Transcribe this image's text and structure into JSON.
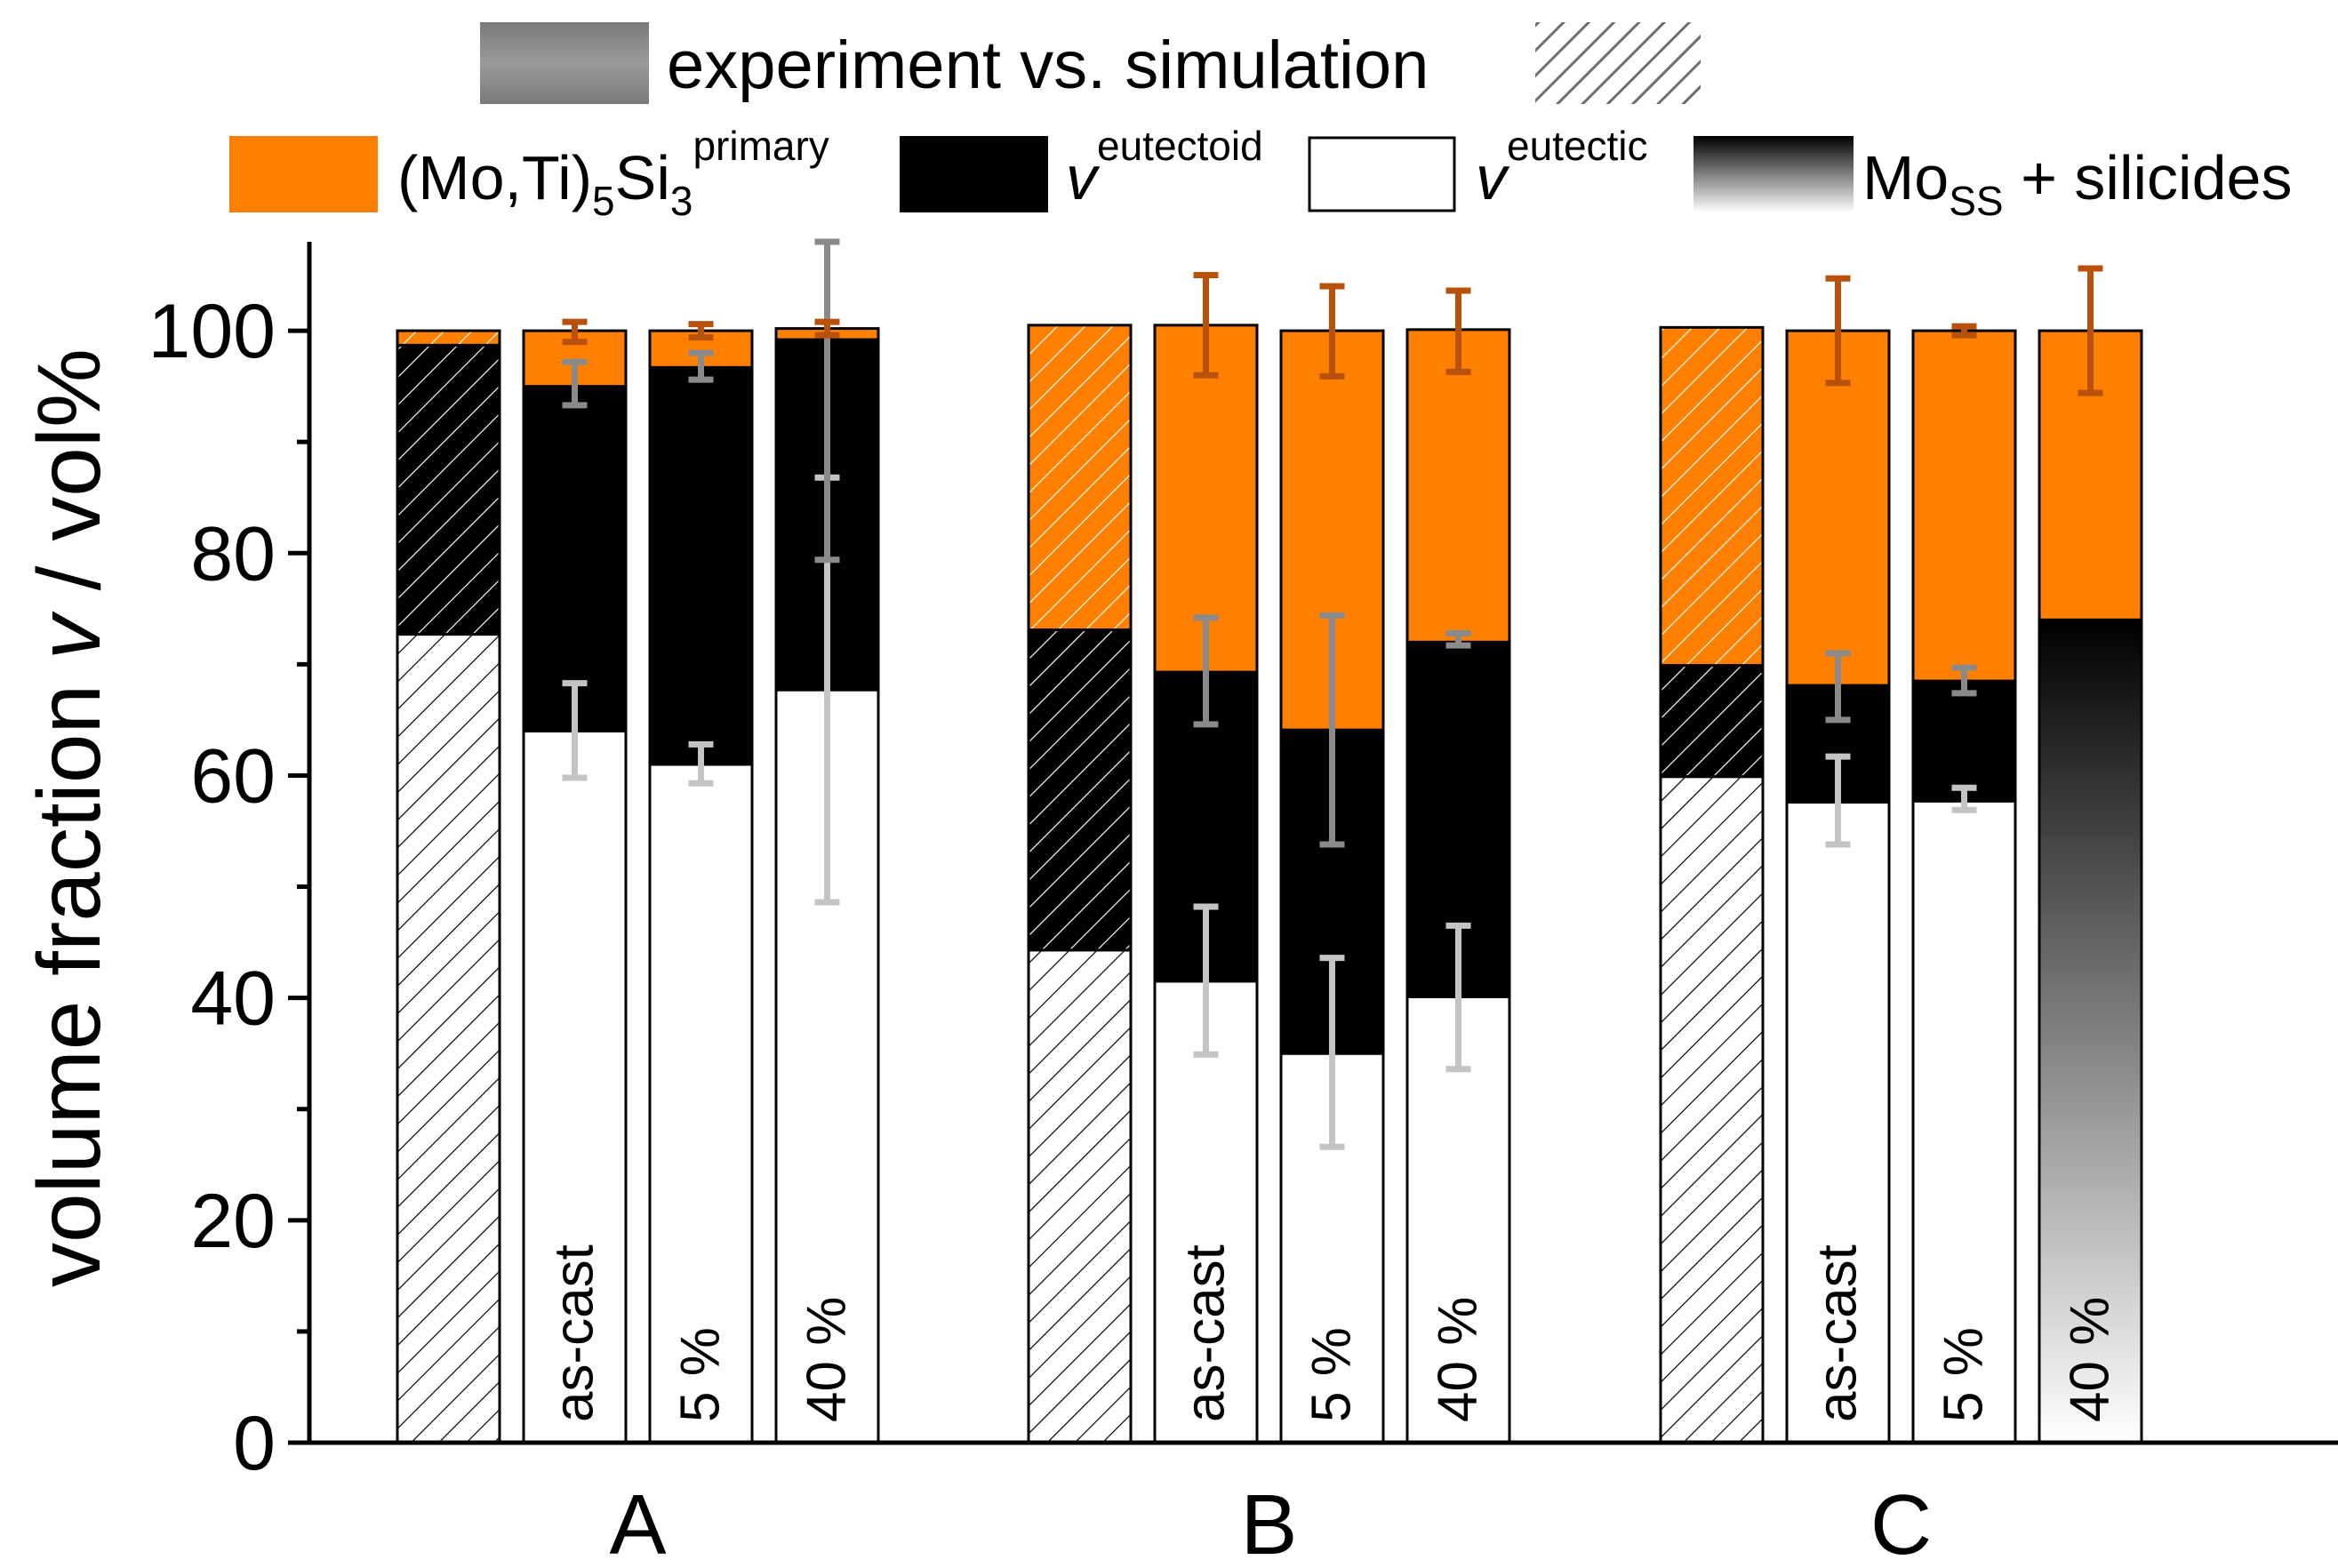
{
  "chart_data": {
    "type": "bar",
    "stacked": true,
    "header": {
      "experiment_label": "experiment vs. simulation"
    },
    "legend": {
      "primary": {
        "main": "(Mo,Ti)",
        "sub1": "5",
        "mid": "Si",
        "sub2": "3",
        "sup": "primary"
      },
      "eutectoid": {
        "main": "v",
        "sup": "eutectoid"
      },
      "eutectic": {
        "main": "v",
        "sup": "eutectic"
      },
      "moss": {
        "main": "Mo",
        "sub": "SS",
        "rest": " + silicides"
      }
    },
    "ylabel": {
      "main": "volume fraction ",
      "var": "v",
      "rest": " / vol%"
    },
    "ylim": [
      0,
      108
    ],
    "yticks": [
      0,
      20,
      40,
      60,
      80,
      100
    ],
    "colors": {
      "primary": "#FF8000",
      "eutectoid": "#000000",
      "eutectic": "#FFFFFF",
      "error_primary": "#B8510C",
      "error_eutectoid": "#8A8A8A",
      "error_eutectic": "#C4C4C4",
      "hatch": "#000000",
      "legend_grey": "#888888"
    },
    "groups": [
      {
        "name": "A",
        "bars": [
          {
            "label": "",
            "simulation": true,
            "segments": [
              {
                "phase": "eutectic",
                "start": 0,
                "end": 72.7
              },
              {
                "phase": "eutectoid",
                "start": 72.7,
                "end": 98.7
              },
              {
                "phase": "primary",
                "start": 98.7,
                "end": 100
              }
            ]
          },
          {
            "label": "as-cast",
            "simulation": false,
            "segments": [
              {
                "phase": "eutectic",
                "start": 0,
                "end": 64
              },
              {
                "phase": "eutectoid",
                "start": 64,
                "end": 95
              },
              {
                "phase": "primary",
                "start": 95,
                "end": 100
              }
            ],
            "errors": [
              {
                "phase": "eutectic",
                "value": 64,
                "lo": 59.8,
                "hi": 68.3
              },
              {
                "phase": "eutectoid",
                "value": 95,
                "lo": 93.3,
                "hi": 97.2
              },
              {
                "phase": "primary",
                "value": 100,
                "lo": 99,
                "hi": 100.8
              }
            ]
          },
          {
            "label": "5 %",
            "simulation": false,
            "segments": [
              {
                "phase": "eutectic",
                "start": 0,
                "end": 61
              },
              {
                "phase": "eutectoid",
                "start": 61,
                "end": 96.7
              },
              {
                "phase": "primary",
                "start": 96.7,
                "end": 100
              }
            ],
            "errors": [
              {
                "phase": "eutectic",
                "value": 61,
                "lo": 59.3,
                "hi": 62.8
              },
              {
                "phase": "eutectoid",
                "value": 96.7,
                "lo": 95.6,
                "hi": 98
              },
              {
                "phase": "primary",
                "value": 100,
                "lo": 99.4,
                "hi": 100.6
              }
            ]
          },
          {
            "label": "40 %",
            "simulation": false,
            "segments": [
              {
                "phase": "eutectic",
                "start": 0,
                "end": 67.7
              },
              {
                "phase": "eutectoid",
                "start": 67.7,
                "end": 99.2
              },
              {
                "phase": "primary",
                "start": 99.2,
                "end": 100.2
              }
            ],
            "errors": [
              {
                "phase": "eutectic",
                "value": 67.7,
                "lo": 48.6,
                "hi": 86.8
              },
              {
                "phase": "eutectoid",
                "value": 99.2,
                "lo": 79.4,
                "hi": 108
              },
              {
                "phase": "primary",
                "value": 100.2,
                "lo": 99.6,
                "hi": 100.8
              }
            ]
          }
        ]
      },
      {
        "name": "B",
        "bars": [
          {
            "label": "",
            "simulation": true,
            "segments": [
              {
                "phase": "eutectic",
                "start": 0,
                "end": 44.3
              },
              {
                "phase": "eutectoid",
                "start": 44.3,
                "end": 73.1
              },
              {
                "phase": "primary",
                "start": 73.1,
                "end": 100.5
              }
            ]
          },
          {
            "label": "as-cast",
            "simulation": false,
            "segments": [
              {
                "phase": "eutectic",
                "start": 0,
                "end": 41.5
              },
              {
                "phase": "eutectoid",
                "start": 41.5,
                "end": 69.3
              },
              {
                "phase": "primary",
                "start": 69.3,
                "end": 100.5
              }
            ],
            "errors": [
              {
                "phase": "eutectic",
                "value": 41.5,
                "lo": 34.9,
                "hi": 48.2
              },
              {
                "phase": "eutectoid",
                "value": 69.3,
                "lo": 64.6,
                "hi": 74.2
              },
              {
                "phase": "primary",
                "value": 100.5,
                "lo": 96,
                "hi": 105
              }
            ]
          },
          {
            "label": "5 %",
            "simulation": false,
            "segments": [
              {
                "phase": "eutectic",
                "start": 0,
                "end": 35
              },
              {
                "phase": "eutectoid",
                "start": 35,
                "end": 64.1
              },
              {
                "phase": "primary",
                "start": 64.1,
                "end": 100
              }
            ],
            "errors": [
              {
                "phase": "eutectic",
                "value": 35,
                "lo": 26.6,
                "hi": 43.6
              },
              {
                "phase": "eutectoid",
                "value": 64.1,
                "lo": 53.8,
                "hi": 74.4
              },
              {
                "phase": "primary",
                "value": 100,
                "lo": 95.9,
                "hi": 104
              }
            ]
          },
          {
            "label": "40 %",
            "simulation": false,
            "segments": [
              {
                "phase": "eutectic",
                "start": 0,
                "end": 40.1
              },
              {
                "phase": "eutectoid",
                "start": 40.1,
                "end": 72
              },
              {
                "phase": "primary",
                "start": 72,
                "end": 100.1
              }
            ],
            "errors": [
              {
                "phase": "eutectic",
                "value": 40.1,
                "lo": 33.6,
                "hi": 46.5
              },
              {
                "phase": "eutectoid",
                "value": 72,
                "lo": 71.7,
                "hi": 72.8
              },
              {
                "phase": "primary",
                "value": 100.1,
                "lo": 96.3,
                "hi": 103.6
              }
            ]
          }
        ]
      },
      {
        "name": "C",
        "bars": [
          {
            "label": "",
            "simulation": true,
            "segments": [
              {
                "phase": "eutectic",
                "start": 0,
                "end": 59.9
              },
              {
                "phase": "eutectoid",
                "start": 59.9,
                "end": 69.9
              },
              {
                "phase": "primary",
                "start": 69.9,
                "end": 100.3
              }
            ]
          },
          {
            "label": "as-cast",
            "simulation": false,
            "segments": [
              {
                "phase": "eutectic",
                "start": 0,
                "end": 57.6
              },
              {
                "phase": "eutectoid",
                "start": 57.6,
                "end": 68.1
              },
              {
                "phase": "primary",
                "start": 68.1,
                "end": 100
              }
            ],
            "errors": [
              {
                "phase": "eutectic",
                "value": 57.6,
                "lo": 53.8,
                "hi": 61.7
              },
              {
                "phase": "eutectoid",
                "value": 68.1,
                "lo": 65,
                "hi": 71
              },
              {
                "phase": "primary",
                "value": 100,
                "lo": 95.3,
                "hi": 104.7
              }
            ]
          },
          {
            "label": "5 %",
            "simulation": false,
            "segments": [
              {
                "phase": "eutectic",
                "start": 0,
                "end": 57.7
              },
              {
                "phase": "eutectoid",
                "start": 57.7,
                "end": 68.5
              },
              {
                "phase": "primary",
                "start": 68.5,
                "end": 100
              }
            ],
            "errors": [
              {
                "phase": "eutectic",
                "value": 57.7,
                "lo": 56.9,
                "hi": 58.9
              },
              {
                "phase": "eutectoid",
                "value": 68.5,
                "lo": 67.4,
                "hi": 69.7
              },
              {
                "phase": "primary",
                "value": 100,
                "lo": 99.6,
                "hi": 100.4
              }
            ]
          },
          {
            "label": "40 %",
            "simulation": false,
            "segments": [
              {
                "phase": "moss",
                "start": 0,
                "end": 74
              },
              {
                "phase": "primary",
                "start": 74,
                "end": 100
              }
            ],
            "errors": [
              {
                "phase": "primary",
                "value": 100,
                "lo": 94.4,
                "hi": 105.6
              }
            ]
          }
        ]
      }
    ]
  }
}
